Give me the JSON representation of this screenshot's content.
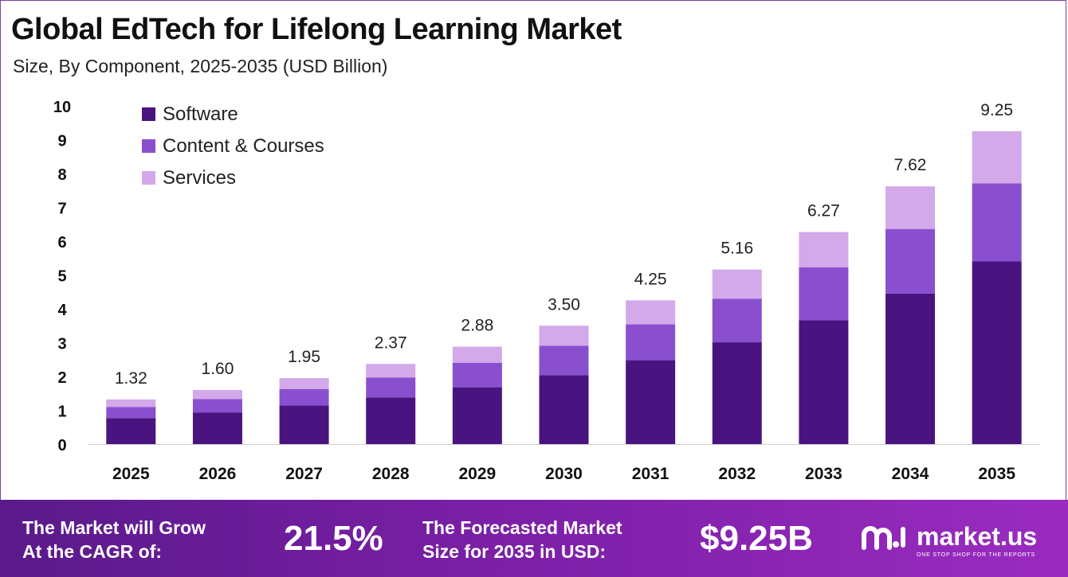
{
  "chart_data": {
    "type": "bar",
    "stacked": true,
    "title": "Global EdTech for Lifelong Learning Market",
    "subtitle": "Size, By Component, 2025-2035 (USD Billion)",
    "categories": [
      "2025",
      "2026",
      "2027",
      "2028",
      "2029",
      "2030",
      "2031",
      "2032",
      "2033",
      "2034",
      "2035"
    ],
    "series": [
      {
        "name": "Software",
        "color": "#4a1480",
        "values": [
          0.77,
          0.93,
          1.14,
          1.38,
          1.68,
          2.04,
          2.48,
          3.01,
          3.66,
          4.45,
          5.4
        ]
      },
      {
        "name": "Content & Courses",
        "color": "#8a4fcf",
        "values": [
          0.33,
          0.4,
          0.49,
          0.59,
          0.72,
          0.87,
          1.06,
          1.29,
          1.57,
          1.91,
          2.31
        ]
      },
      {
        "name": "Services",
        "color": "#d3a9ea",
        "values": [
          0.22,
          0.27,
          0.32,
          0.4,
          0.48,
          0.59,
          0.71,
          0.86,
          1.04,
          1.26,
          1.54
        ]
      }
    ],
    "totals": [
      "1.32",
      "1.60",
      "1.95",
      "2.37",
      "2.88",
      "3.50",
      "4.25",
      "5.16",
      "6.27",
      "7.62",
      "9.25"
    ],
    "yticks": [
      0,
      1,
      2,
      3,
      4,
      5,
      6,
      7,
      8,
      9,
      10
    ],
    "ylim": [
      0,
      10
    ],
    "grid": false,
    "legend_position": "top-left"
  },
  "footer": {
    "cagr_label_line1": "The Market will Grow",
    "cagr_label_line2": "At the CAGR of:",
    "cagr_value": "21.5%",
    "forecast_label_line1": "The Forecasted Market",
    "forecast_label_line2": "Size for 2035 in USD:",
    "forecast_value": "$9.25B",
    "brand_name": "market.us",
    "brand_tagline": "ONE STOP SHOP FOR THE REPORTS",
    "brand_icon": "market-us-logo-icon"
  }
}
